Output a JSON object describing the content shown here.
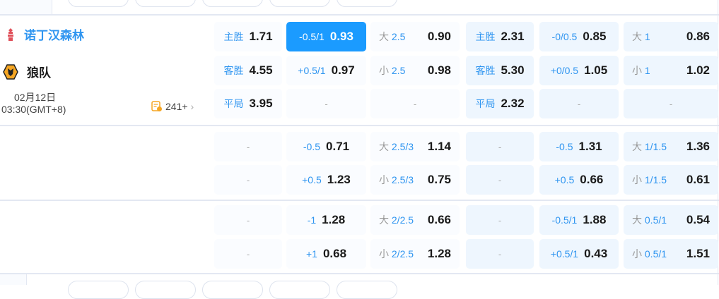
{
  "match": {
    "home": "诺丁汉森林",
    "away": "狼队",
    "date": "02月12日",
    "time": "03:30(GMT+8)",
    "count": "241+",
    "colors": {
      "accent": "#1b9bff",
      "home_name": "#2f95f0"
    }
  },
  "rows": [
    [
      {
        "l": "主胜",
        "v": "1.71"
      },
      {
        "l": "-0.5/1",
        "v": "0.93",
        "hl": true
      },
      {
        "p": "大",
        "l": "2.5",
        "v": "0.90"
      },
      {
        "l": "主胜",
        "v": "2.31"
      },
      {
        "l": "-0/0.5",
        "v": "0.85"
      },
      {
        "p": "大",
        "l": "1",
        "v": "0.86"
      }
    ],
    [
      {
        "l": "客胜",
        "v": "4.55"
      },
      {
        "l": "+0.5/1",
        "v": "0.97"
      },
      {
        "p": "小",
        "l": "2.5",
        "v": "0.98"
      },
      {
        "l": "客胜",
        "v": "5.30"
      },
      {
        "l": "+0/0.5",
        "v": "1.05"
      },
      {
        "p": "小",
        "l": "1",
        "v": "1.02"
      }
    ],
    [
      {
        "l": "平局",
        "v": "3.95"
      },
      {
        "d": "-"
      },
      {
        "d": "-"
      },
      {
        "l": "平局",
        "v": "2.32"
      },
      {
        "d": "-"
      },
      {
        "d": "-"
      }
    ],
    [
      {
        "d": "-"
      },
      {
        "l": "-0.5",
        "v": "0.71"
      },
      {
        "p": "大",
        "l": "2.5/3",
        "v": "1.14"
      },
      {
        "d": "-"
      },
      {
        "l": "-0.5",
        "v": "1.31"
      },
      {
        "p": "大",
        "l": "1/1.5",
        "v": "1.36"
      }
    ],
    [
      {
        "d": "-"
      },
      {
        "l": "+0.5",
        "v": "1.23"
      },
      {
        "p": "小",
        "l": "2.5/3",
        "v": "0.75"
      },
      {
        "d": "-"
      },
      {
        "l": "+0.5",
        "v": "0.66"
      },
      {
        "p": "小",
        "l": "1/1.5",
        "v": "0.61"
      }
    ],
    [
      {
        "d": "-"
      },
      {
        "l": "-1",
        "v": "1.28"
      },
      {
        "p": "大",
        "l": "2/2.5",
        "v": "0.66"
      },
      {
        "d": "-"
      },
      {
        "l": "-0.5/1",
        "v": "1.88"
      },
      {
        "p": "大",
        "l": "0.5/1",
        "v": "0.54"
      }
    ],
    [
      {
        "d": "-"
      },
      {
        "l": "+1",
        "v": "0.68"
      },
      {
        "p": "小",
        "l": "2/2.5",
        "v": "1.28"
      },
      {
        "d": "-"
      },
      {
        "l": "+0.5/1",
        "v": "0.43"
      },
      {
        "p": "小",
        "l": "0.5/1",
        "v": "1.51"
      }
    ]
  ]
}
